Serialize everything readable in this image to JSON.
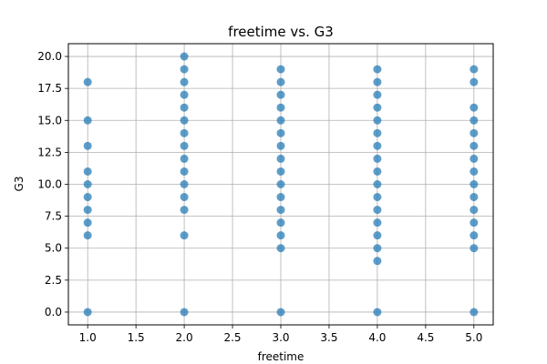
{
  "chart_data": {
    "type": "scatter",
    "title": "freetime vs. G3",
    "xlabel": "freetime",
    "ylabel": "G3",
    "xlim": [
      0.8,
      5.2
    ],
    "ylim": [
      -1.0,
      21.0
    ],
    "xticks": [
      1.0,
      1.5,
      2.0,
      2.5,
      3.0,
      3.5,
      4.0,
      4.5,
      5.0
    ],
    "xtick_labels": [
      "1.0",
      "1.5",
      "2.0",
      "2.5",
      "3.0",
      "3.5",
      "4.0",
      "4.5",
      "5.0"
    ],
    "yticks": [
      0.0,
      2.5,
      5.0,
      7.5,
      10.0,
      12.5,
      15.0,
      17.5,
      20.0
    ],
    "ytick_labels": [
      "0.0",
      "2.5",
      "5.0",
      "7.5",
      "10.0",
      "12.5",
      "15.0",
      "17.5",
      "20.0"
    ],
    "grid": true,
    "color": "#1f77b4",
    "points": [
      {
        "x": 1,
        "y": 0
      },
      {
        "x": 1,
        "y": 6
      },
      {
        "x": 1,
        "y": 7
      },
      {
        "x": 1,
        "y": 8
      },
      {
        "x": 1,
        "y": 9
      },
      {
        "x": 1,
        "y": 10
      },
      {
        "x": 1,
        "y": 11
      },
      {
        "x": 1,
        "y": 13
      },
      {
        "x": 1,
        "y": 15
      },
      {
        "x": 1,
        "y": 18
      },
      {
        "x": 2,
        "y": 0
      },
      {
        "x": 2,
        "y": 6
      },
      {
        "x": 2,
        "y": 8
      },
      {
        "x": 2,
        "y": 9
      },
      {
        "x": 2,
        "y": 10
      },
      {
        "x": 2,
        "y": 11
      },
      {
        "x": 2,
        "y": 12
      },
      {
        "x": 2,
        "y": 13
      },
      {
        "x": 2,
        "y": 14
      },
      {
        "x": 2,
        "y": 15
      },
      {
        "x": 2,
        "y": 16
      },
      {
        "x": 2,
        "y": 17
      },
      {
        "x": 2,
        "y": 18
      },
      {
        "x": 2,
        "y": 19
      },
      {
        "x": 2,
        "y": 20
      },
      {
        "x": 3,
        "y": 0
      },
      {
        "x": 3,
        "y": 5
      },
      {
        "x": 3,
        "y": 6
      },
      {
        "x": 3,
        "y": 7
      },
      {
        "x": 3,
        "y": 8
      },
      {
        "x": 3,
        "y": 9
      },
      {
        "x": 3,
        "y": 10
      },
      {
        "x": 3,
        "y": 11
      },
      {
        "x": 3,
        "y": 12
      },
      {
        "x": 3,
        "y": 13
      },
      {
        "x": 3,
        "y": 14
      },
      {
        "x": 3,
        "y": 15
      },
      {
        "x": 3,
        "y": 16
      },
      {
        "x": 3,
        "y": 17
      },
      {
        "x": 3,
        "y": 18
      },
      {
        "x": 3,
        "y": 19
      },
      {
        "x": 4,
        "y": 0
      },
      {
        "x": 4,
        "y": 4
      },
      {
        "x": 4,
        "y": 5
      },
      {
        "x": 4,
        "y": 6
      },
      {
        "x": 4,
        "y": 7
      },
      {
        "x": 4,
        "y": 8
      },
      {
        "x": 4,
        "y": 9
      },
      {
        "x": 4,
        "y": 10
      },
      {
        "x": 4,
        "y": 11
      },
      {
        "x": 4,
        "y": 12
      },
      {
        "x": 4,
        "y": 13
      },
      {
        "x": 4,
        "y": 14
      },
      {
        "x": 4,
        "y": 15
      },
      {
        "x": 4,
        "y": 16
      },
      {
        "x": 4,
        "y": 17
      },
      {
        "x": 4,
        "y": 18
      },
      {
        "x": 4,
        "y": 19
      },
      {
        "x": 5,
        "y": 0
      },
      {
        "x": 5,
        "y": 5
      },
      {
        "x": 5,
        "y": 6
      },
      {
        "x": 5,
        "y": 7
      },
      {
        "x": 5,
        "y": 8
      },
      {
        "x": 5,
        "y": 9
      },
      {
        "x": 5,
        "y": 10
      },
      {
        "x": 5,
        "y": 11
      },
      {
        "x": 5,
        "y": 12
      },
      {
        "x": 5,
        "y": 13
      },
      {
        "x": 5,
        "y": 14
      },
      {
        "x": 5,
        "y": 15
      },
      {
        "x": 5,
        "y": 16
      },
      {
        "x": 5,
        "y": 18
      },
      {
        "x": 5,
        "y": 19
      }
    ]
  }
}
